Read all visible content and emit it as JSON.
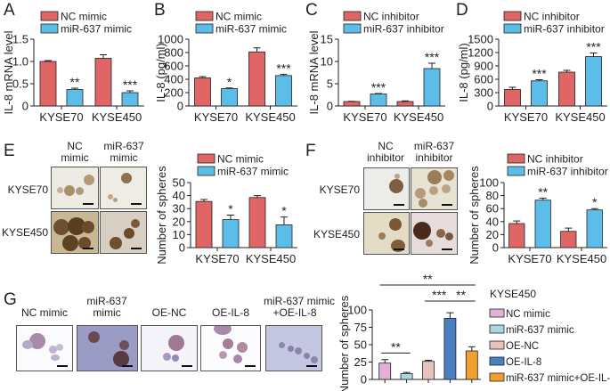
{
  "colors": {
    "nc": "#e06666",
    "mir": "#5bbde8",
    "g_nc_mimic": "#e2b2d4",
    "g_mir_mimic": "#a8d8de",
    "g_oe_nc": "#e8c2c0",
    "g_oe_il8": "#4a7fc1",
    "g_combo": "#f0a030",
    "axis": "#231f20"
  },
  "panels": {
    "A": "A",
    "B": "B",
    "C": "C",
    "D": "D",
    "E": "E",
    "F": "F",
    "G": "G"
  },
  "images": {
    "E": {
      "col_labels": [
        "NC mimic",
        "miR-637 mimic"
      ],
      "col_lines": [
        [
          "NC",
          "mimic"
        ],
        [
          "miR-637",
          "mimic"
        ]
      ],
      "row_labels": [
        "KYSE70",
        "KYSE450"
      ]
    },
    "F": {
      "col_lines": [
        [
          "NC",
          "inhibitor"
        ],
        [
          "miR-637",
          "inhibitor"
        ]
      ],
      "row_labels": [
        "KYSE70",
        "KYSE450"
      ]
    },
    "G": {
      "col_lines": [
        [
          "NC mimic"
        ],
        [
          "miR-637",
          "mimic"
        ],
        [
          "OE-NC"
        ],
        [
          "OE-IL-8"
        ],
        [
          "miR-637 mimic",
          "+OE-IL-8"
        ]
      ]
    }
  },
  "chart_data": [
    {
      "id": "A",
      "type": "bar",
      "title": "",
      "xlabel": "",
      "ylabel": "IL-8 mRNA level",
      "categories": [
        "KYSE70",
        "KYSE450"
      ],
      "ylim": [
        0,
        1.5
      ],
      "yticks": [
        "0",
        "0.5",
        "1.0",
        "1.5"
      ],
      "ytick_values": [
        0,
        0.5,
        1.0,
        1.5
      ],
      "series": [
        {
          "name": "NC mimic",
          "values": [
            1.0,
            1.07
          ],
          "errors": [
            0.02,
            0.08
          ]
        },
        {
          "name": "miR-637 mimic",
          "values": [
            0.37,
            0.3
          ],
          "errors": [
            0.03,
            0.04
          ]
        }
      ],
      "significance": [
        [
          "",
          "**"
        ],
        [
          "",
          "***"
        ]
      ],
      "legend": "top-left",
      "grid": false
    },
    {
      "id": "B",
      "type": "bar",
      "title": "",
      "xlabel": "",
      "ylabel": "IL-8 (pg/ml)",
      "categories": [
        "KYSE70",
        "KYSE450"
      ],
      "ylim": [
        0,
        1000
      ],
      "yticks": [
        "0",
        "200",
        "400",
        "600",
        "800",
        "1000"
      ],
      "ytick_values": [
        0,
        200,
        400,
        600,
        800,
        1000
      ],
      "series": [
        {
          "name": "NC mimic",
          "values": [
            420,
            810
          ],
          "errors": [
            20,
            60
          ]
        },
        {
          "name": "miR-637 mimic",
          "values": [
            260,
            455
          ],
          "errors": [
            10,
            20
          ]
        }
      ],
      "significance": [
        [
          "",
          "*"
        ],
        [
          "",
          "***"
        ]
      ],
      "legend": "top-left",
      "grid": false
    },
    {
      "id": "C",
      "type": "bar",
      "title": "",
      "xlabel": "",
      "ylabel": "IL-8 mRNA level",
      "categories": [
        "KYSE70",
        "KYSE450"
      ],
      "ylim": [
        0,
        15
      ],
      "yticks": [
        "0",
        "5",
        "10",
        "15"
      ],
      "ytick_values": [
        0,
        5,
        10,
        15
      ],
      "series": [
        {
          "name": "NC inhibitor",
          "values": [
            1.0,
            1.0
          ],
          "errors": [
            0.05,
            0.15
          ]
        },
        {
          "name": "miR-637 inhibitor",
          "values": [
            2.7,
            8.4
          ],
          "errors": [
            0.1,
            1.2
          ]
        }
      ],
      "significance": [
        [
          "",
          "***"
        ],
        [
          "",
          "***"
        ]
      ],
      "legend": "top-left",
      "grid": false
    },
    {
      "id": "D",
      "type": "bar",
      "title": "",
      "xlabel": "",
      "ylabel": "IL-8 (pg/ml)",
      "categories": [
        "KYSE70",
        "KYSE450"
      ],
      "ylim": [
        0,
        1500
      ],
      "yticks": [
        "0",
        "300",
        "600",
        "900",
        "1200",
        "1500"
      ],
      "ytick_values": [
        0,
        300,
        600,
        900,
        1200,
        1500
      ],
      "series": [
        {
          "name": "NC inhibitor",
          "values": [
            370,
            760
          ],
          "errors": [
            50,
            40
          ]
        },
        {
          "name": "miR-637 inhibitor",
          "values": [
            565,
            1110
          ],
          "errors": [
            25,
            80
          ]
        }
      ],
      "significance": [
        [
          "",
          "***"
        ],
        [
          "",
          "***"
        ]
      ],
      "legend": "top-left",
      "grid": false
    },
    {
      "id": "E",
      "type": "bar",
      "title": "",
      "xlabel": "",
      "ylabel": "Number of spheres",
      "categories": [
        "KYSE70",
        "KYSE450"
      ],
      "ylim": [
        0,
        50
      ],
      "yticks": [
        "0",
        "10",
        "20",
        "30",
        "40",
        "50"
      ],
      "ytick_values": [
        0,
        10,
        20,
        30,
        40,
        50
      ],
      "series": [
        {
          "name": "NC mimic",
          "values": [
            35.5,
            38.5
          ],
          "errors": [
            1.5,
            1.5
          ]
        },
        {
          "name": "miR-637 mimic",
          "values": [
            21.5,
            17.5
          ],
          "errors": [
            3.5,
            6
          ]
        }
      ],
      "significance": [
        [
          "",
          "*"
        ],
        [
          "",
          "*"
        ]
      ],
      "legend": "top-left",
      "grid": false
    },
    {
      "id": "F",
      "type": "bar",
      "title": "",
      "xlabel": "",
      "ylabel": "Number of spheres",
      "categories": [
        "KYSE70",
        "KYSE450"
      ],
      "ylim": [
        0,
        100
      ],
      "yticks": [
        "0",
        "20",
        "40",
        "60",
        "80",
        "100"
      ],
      "ytick_values": [
        0,
        20,
        40,
        60,
        80,
        100
      ],
      "series": [
        {
          "name": "NC inhibitor",
          "values": [
            37,
            25
          ],
          "errors": [
            4,
            5
          ]
        },
        {
          "name": "miR-637 inhibitor",
          "values": [
            73,
            58
          ],
          "errors": [
            3,
            2
          ]
        }
      ],
      "significance": [
        [
          "",
          "**"
        ],
        [
          "",
          "*"
        ]
      ],
      "legend": "top-left",
      "grid": false
    },
    {
      "id": "G",
      "type": "bar",
      "title": "KYSE450",
      "xlabel": "",
      "ylabel": "Number of spheres",
      "categories": [
        "NC mimic",
        "miR-637 mimic",
        "OE-NC",
        "OE-IL-8",
        "miR-637 mimic+OE-IL-8"
      ],
      "ylim": [
        0,
        100
      ],
      "yticks": [
        "0",
        "25",
        "50",
        "75",
        "100"
      ],
      "ytick_values": [
        0,
        25,
        50,
        75,
        100
      ],
      "values": [
        23.5,
        8.5,
        26,
        88,
        41
      ],
      "errors": [
        5,
        1.5,
        1.5,
        8,
        6
      ],
      "comparisons": [
        {
          "from": 0,
          "to": 1,
          "label": "**"
        },
        {
          "from": 2,
          "to": 3,
          "label": "***"
        },
        {
          "from": 3,
          "to": 4,
          "label": "**"
        },
        {
          "from": 1,
          "to": 4,
          "label": "**"
        }
      ],
      "legend_title": "KYSE450",
      "legend": "right",
      "grid": false
    }
  ]
}
